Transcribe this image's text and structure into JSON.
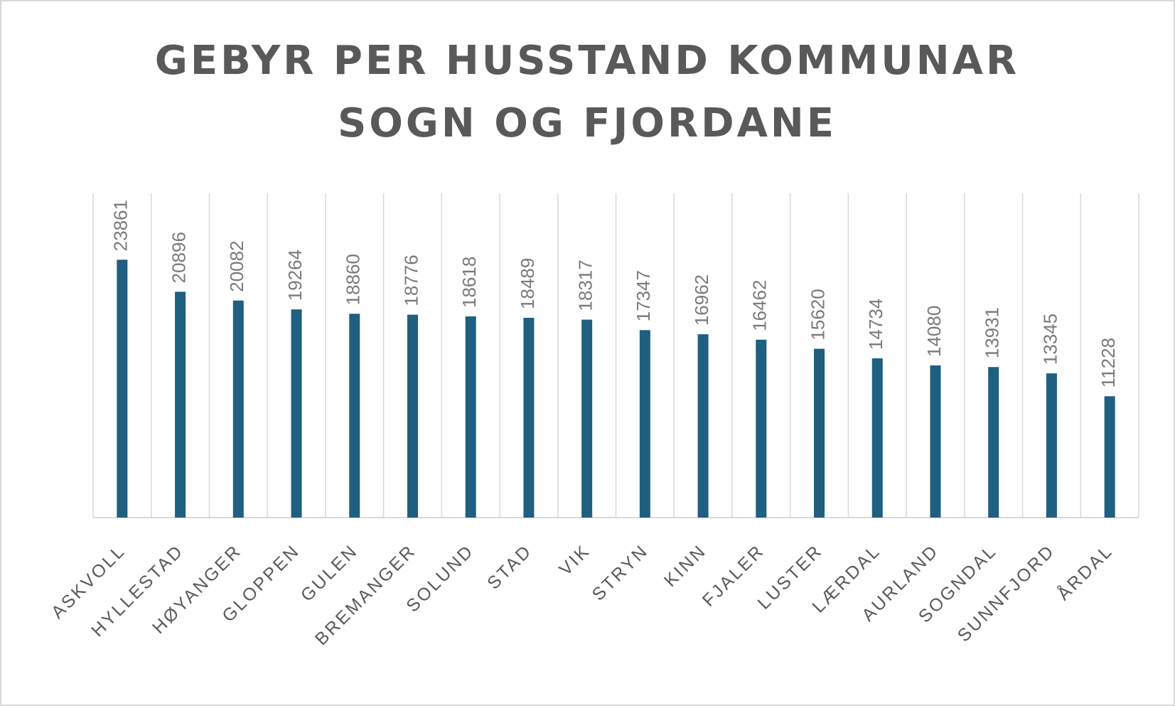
{
  "chart_data": {
    "type": "bar",
    "title": [
      "GEBYR PER HUSSTAND KOMMUNAR",
      "SOGN OG FJORDANE"
    ],
    "categories": [
      "ASKVOLL",
      "HYLLESTAD",
      "HØYANGER",
      "GLOPPEN",
      "GULEN",
      "BREMANGER",
      "SOLUND",
      "STAD",
      "VIK",
      "STRYN",
      "KINN",
      "FJALER",
      "LUSTER",
      "LÆRDAL",
      "AURLAND",
      "SOGNDAL",
      "SUNNFJORD",
      "ÅRDAL"
    ],
    "values": [
      23861,
      20896,
      20082,
      19264,
      18860,
      18776,
      18618,
      18489,
      18317,
      17347,
      16962,
      16462,
      15620,
      14734,
      14080,
      13931,
      13345,
      11228
    ],
    "color": "#1f5f80",
    "ylim": [
      0,
      30000
    ],
    "grid": true
  }
}
